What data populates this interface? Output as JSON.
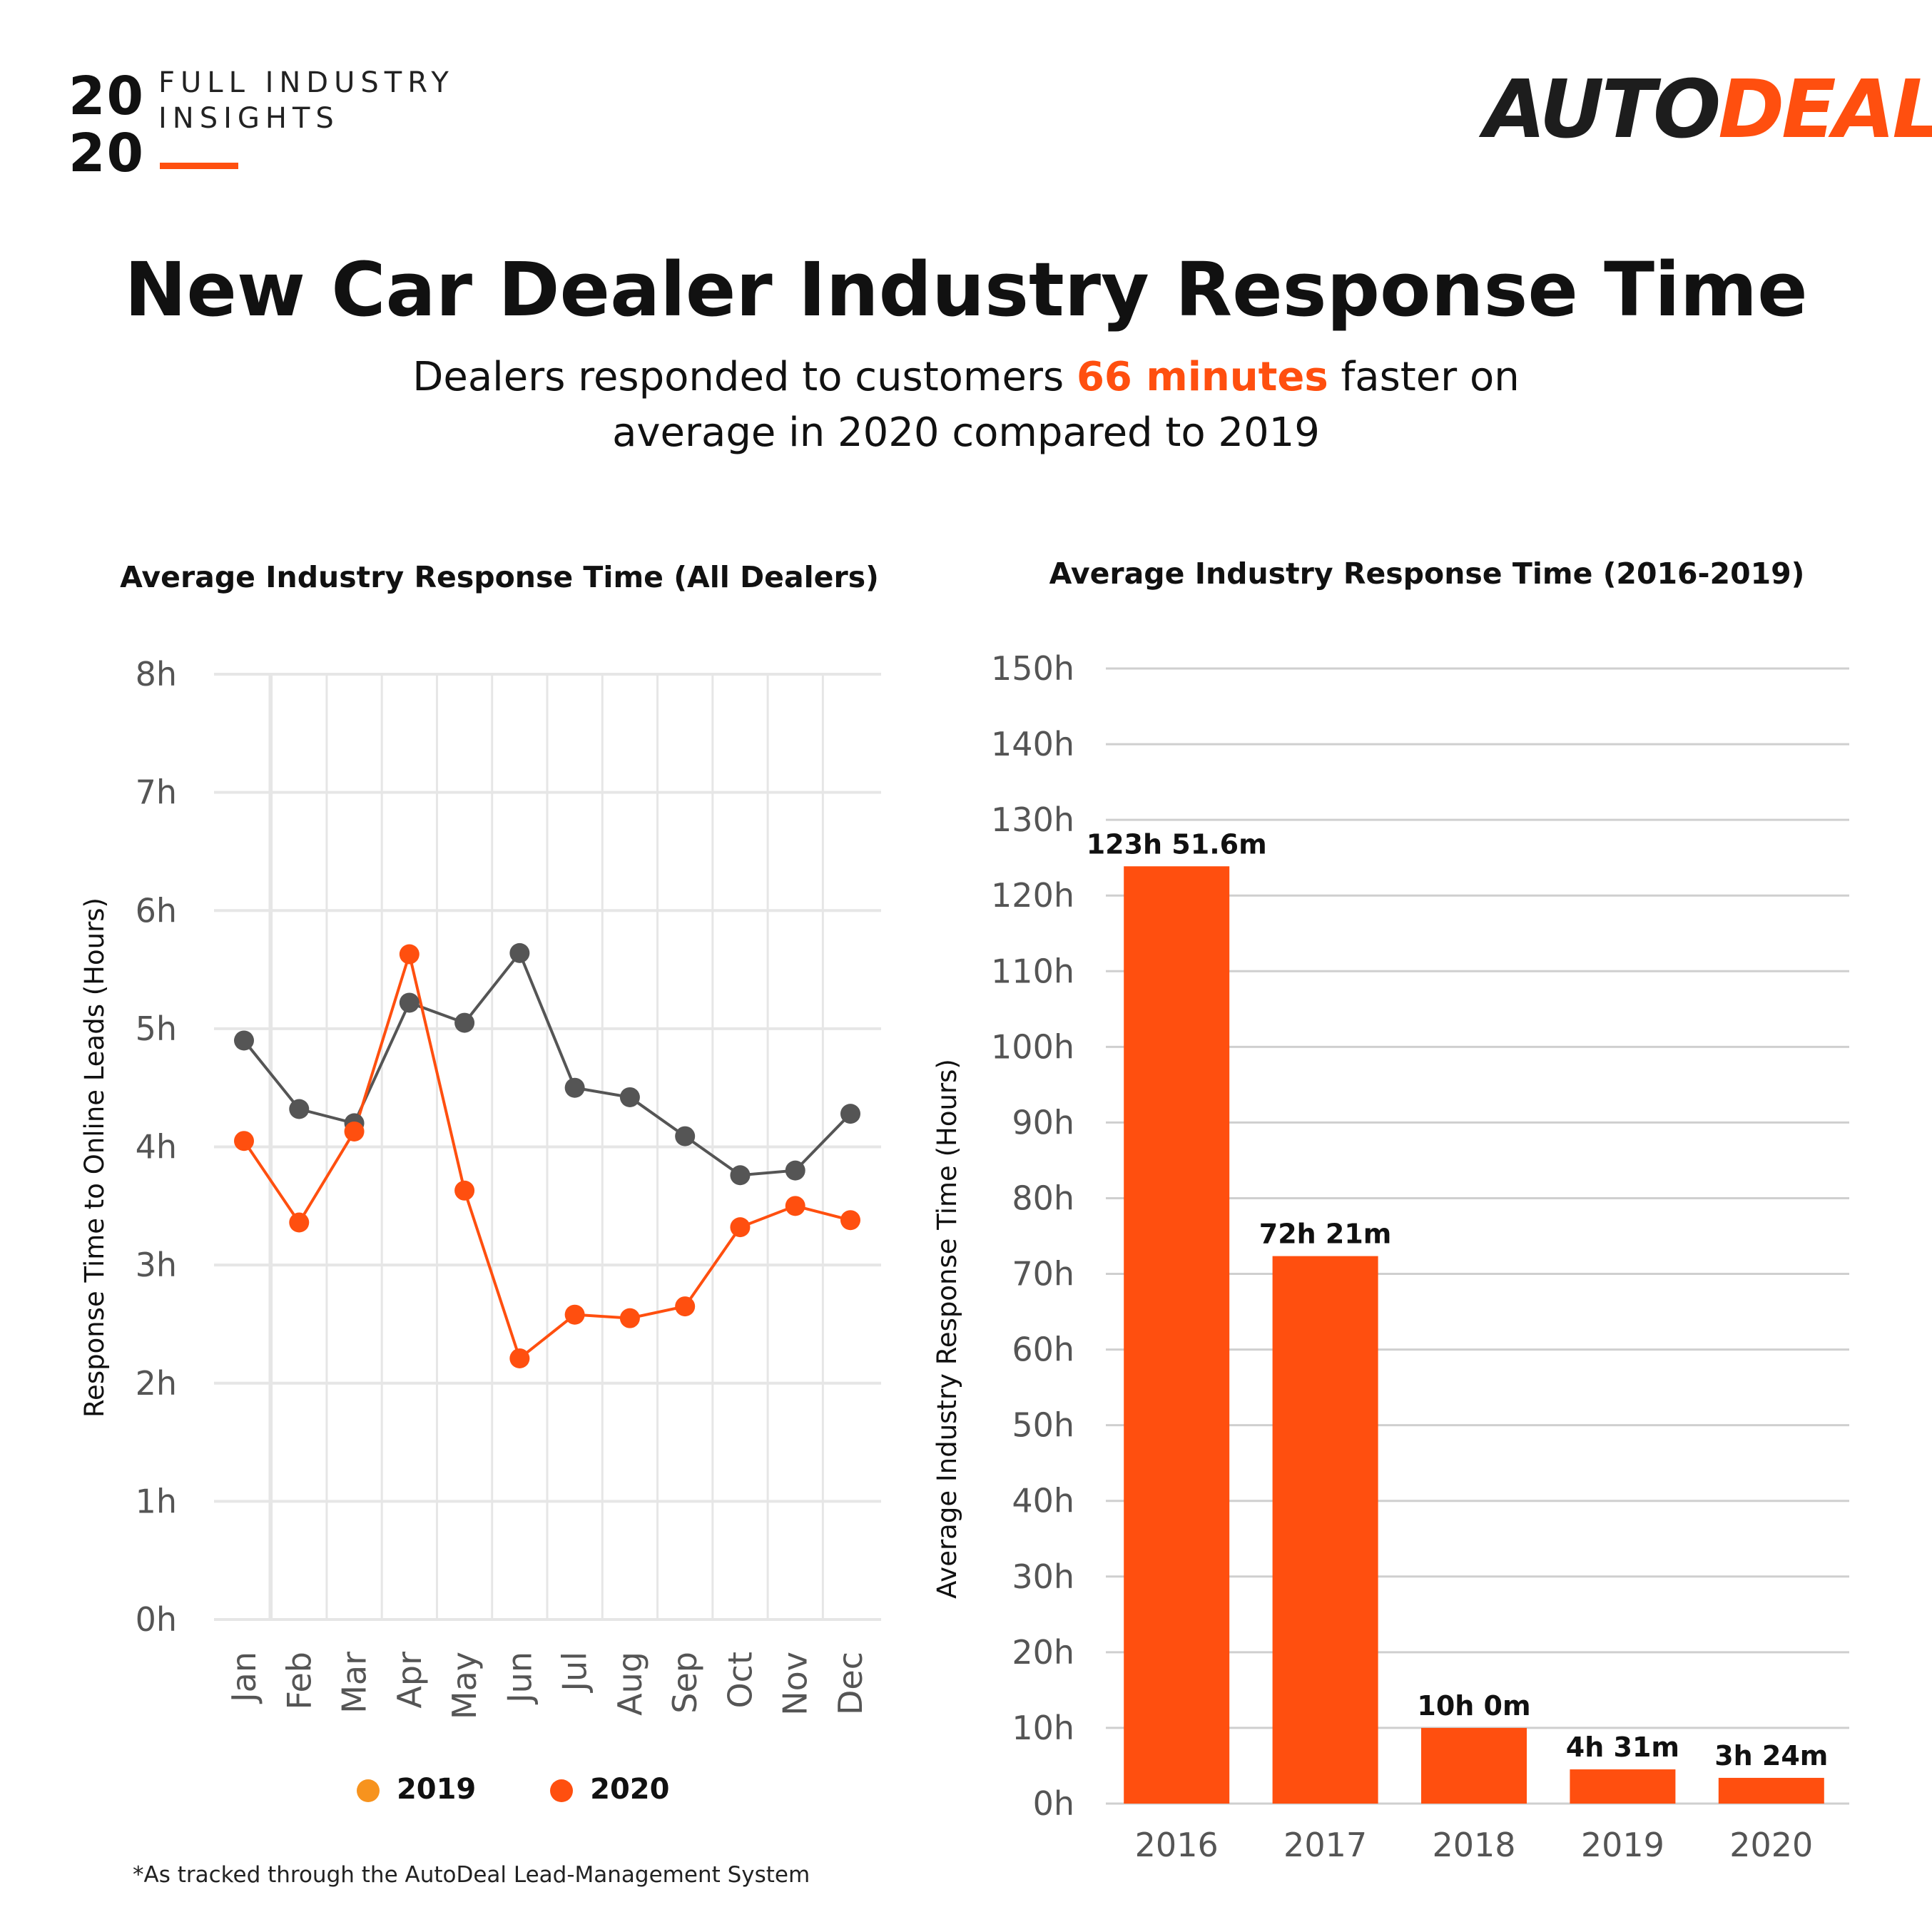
{
  "badge": {
    "year_top": "20",
    "year_bottom": "20",
    "line1": "FULL INDUSTRY",
    "line2": "INSIGHTS"
  },
  "logo": {
    "part1": "AUTO",
    "part2": "DEAL"
  },
  "title": "New Car Dealer Industry Response Time",
  "subtitle": {
    "before": "Dealers responded to customers ",
    "highlight": "66 minutes",
    "after": " faster on",
    "line2": "average in 2020 compared to 2019"
  },
  "colors": {
    "accent": "#ff4f0f",
    "series_2019_line": "#555555",
    "series_2019_legend": "#f7931e",
    "series_2020": "#ff4f0f",
    "grid": "#e6e6e6"
  },
  "legend": {
    "items": [
      "2019",
      "2020"
    ]
  },
  "footnote": "*As tracked through the AutoDeal Lead-Management System",
  "chart_data": [
    {
      "type": "line",
      "title": "Average Industry Response Time (All Dealers)",
      "ylabel": "Response Time to Online Leads (Hours)",
      "xlabel": "",
      "categories": [
        "Jan",
        "Feb",
        "Mar",
        "Apr",
        "May",
        "Jun",
        "Jul",
        "Aug",
        "Sep",
        "Oct",
        "Nov",
        "Dec"
      ],
      "yticks": [
        "0h",
        "1h",
        "2h",
        "3h",
        "4h",
        "5h",
        "6h",
        "7h",
        "8h"
      ],
      "ylim": [
        0,
        8
      ],
      "grid": true,
      "legend_position": "bottom",
      "series": [
        {
          "name": "2019",
          "values": [
            4.9,
            4.32,
            4.2,
            5.22,
            5.05,
            5.64,
            4.5,
            4.42,
            4.09,
            3.76,
            3.8,
            4.28
          ]
        },
        {
          "name": "2020",
          "values": [
            4.05,
            3.36,
            4.13,
            5.63,
            3.63,
            2.21,
            2.58,
            2.55,
            2.65,
            3.32,
            3.5,
            3.38
          ]
        }
      ]
    },
    {
      "type": "bar",
      "title": "Average Industry Response Time (2016-2019)",
      "ylabel": "Average Industry Response Time (Hours)",
      "xlabel": "",
      "categories": [
        "2016",
        "2017",
        "2018",
        "2019",
        "2020"
      ],
      "values": [
        123.86,
        72.35,
        10.0,
        4.52,
        3.4
      ],
      "data_labels": [
        "123h 51.6m",
        "72h 21m",
        "10h 0m",
        "4h 31m",
        "3h 24m"
      ],
      "yticks": [
        "0h",
        "10h",
        "20h",
        "30h",
        "40h",
        "50h",
        "60h",
        "70h",
        "80h",
        "90h",
        "100h",
        "110h",
        "120h",
        "130h",
        "140h",
        "150h"
      ],
      "ylim": [
        0,
        150
      ],
      "grid": true
    }
  ]
}
